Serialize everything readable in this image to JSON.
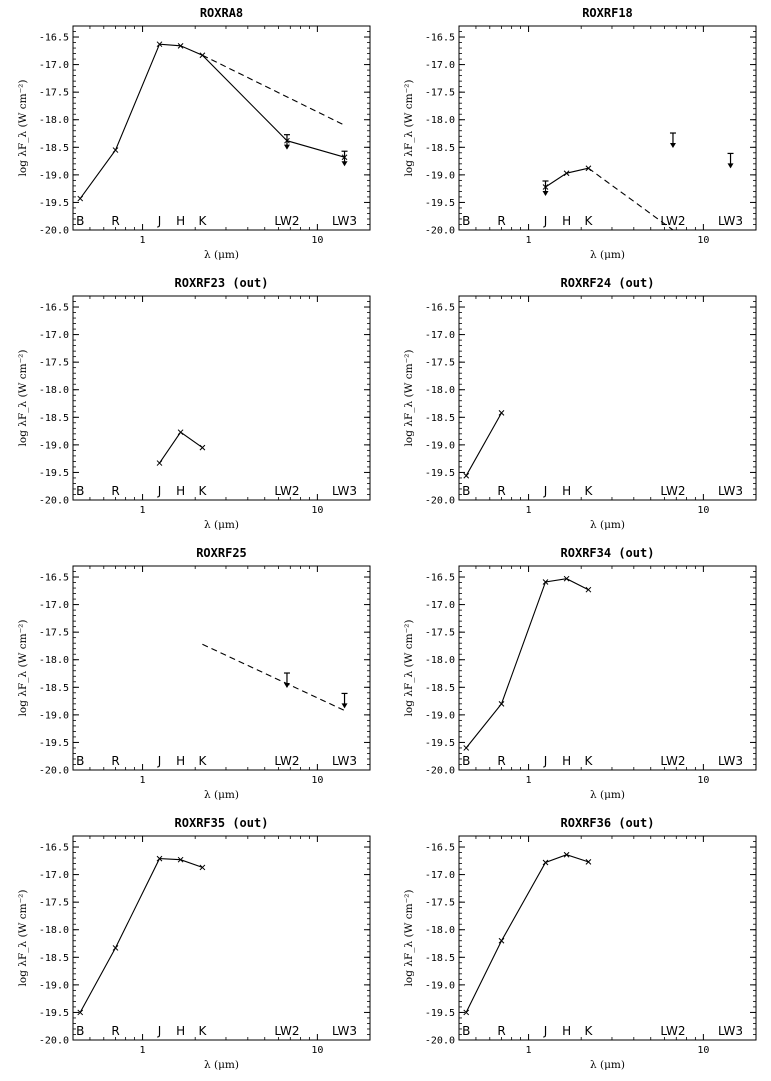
{
  "figure": {
    "background": "#ffffff",
    "ink": "#000000"
  },
  "chart_data": [
    {
      "type": "line",
      "title": "ROXRA8",
      "xlabel": "λ (μm)",
      "ylabel": "log λF_λ (W cm⁻²)",
      "x_scale": "log",
      "xlim": [
        0.4,
        20
      ],
      "ylim": [
        -20.0,
        -16.3
      ],
      "x_tick_labels": [
        "1",
        "10"
      ],
      "y_tick_labels": [
        "-16.5",
        "-17.0",
        "-17.5",
        "-18.0",
        "-18.5",
        "-19.0",
        "-19.5",
        "-20.0"
      ],
      "band_labels": [
        "B",
        "R",
        "J",
        "H",
        "K",
        "LW2",
        "LW3"
      ],
      "series": [
        {
          "style": "solid",
          "x": [
            0.44,
            0.7,
            1.25,
            1.65,
            2.2,
            6.7,
            14.3
          ],
          "y": [
            -19.43,
            -18.55,
            -16.63,
            -16.66,
            -16.83,
            -18.38,
            -18.68
          ]
        },
        {
          "style": "dashed",
          "x": [
            2.2,
            14.3
          ],
          "y": [
            -16.83,
            -18.1
          ]
        }
      ],
      "upper_limits": [
        {
          "x": 6.7,
          "y": -18.38
        },
        {
          "x": 14.3,
          "y": -18.68
        }
      ]
    },
    {
      "type": "line",
      "title": "ROXRF18",
      "xlabel": "λ (μm)",
      "ylabel": "log λF_λ (W cm⁻²)",
      "x_scale": "log",
      "xlim": [
        0.4,
        20
      ],
      "ylim": [
        -20.0,
        -16.3
      ],
      "x_tick_labels": [
        "1",
        "10"
      ],
      "y_tick_labels": [
        "-16.5",
        "-17.0",
        "-17.5",
        "-18.0",
        "-18.5",
        "-19.0",
        "-19.5",
        "-20.0"
      ],
      "band_labels": [
        "B",
        "R",
        "J",
        "H",
        "K",
        "LW2",
        "LW3"
      ],
      "series": [
        {
          "style": "solid",
          "x": [
            1.25,
            1.65,
            2.2
          ],
          "y": [
            -19.22,
            -18.97,
            -18.88
          ]
        },
        {
          "style": "dashed",
          "x": [
            2.2,
            6.7
          ],
          "y": [
            -18.88,
            -20.0
          ]
        }
      ],
      "upper_limits": [
        {
          "x": 1.25,
          "y": -19.22
        },
        {
          "x": 6.7,
          "y": -18.35
        },
        {
          "x": 14.3,
          "y": -18.72
        }
      ]
    },
    {
      "type": "line",
      "title": "ROXRF23 (out)",
      "xlabel": "λ (μm)",
      "ylabel": "log λF_λ (W cm⁻²)",
      "x_scale": "log",
      "xlim": [
        0.4,
        20
      ],
      "ylim": [
        -20.0,
        -16.3
      ],
      "x_tick_labels": [
        "1",
        "10"
      ],
      "y_tick_labels": [
        "-16.5",
        "-17.0",
        "-17.5",
        "-18.0",
        "-18.5",
        "-19.0",
        "-19.5",
        "-20.0"
      ],
      "band_labels": [
        "B",
        "R",
        "J",
        "H",
        "K",
        "LW2",
        "LW3"
      ],
      "series": [
        {
          "style": "solid",
          "x": [
            1.25,
            1.65,
            2.2
          ],
          "y": [
            -19.33,
            -18.77,
            -19.05
          ]
        }
      ],
      "upper_limits": []
    },
    {
      "type": "line",
      "title": "ROXRF24 (out)",
      "xlabel": "λ (μm)",
      "ylabel": "log λF_λ (W cm⁻²)",
      "x_scale": "log",
      "xlim": [
        0.4,
        20
      ],
      "ylim": [
        -20.0,
        -16.3
      ],
      "x_tick_labels": [
        "1",
        "10"
      ],
      "y_tick_labels": [
        "-16.5",
        "-17.0",
        "-17.5",
        "-18.0",
        "-18.5",
        "-19.0",
        "-19.5",
        "-20.0"
      ],
      "band_labels": [
        "B",
        "R",
        "J",
        "H",
        "K",
        "LW2",
        "LW3"
      ],
      "series": [
        {
          "style": "solid",
          "x": [
            0.44,
            0.7
          ],
          "y": [
            -19.56,
            -18.42
          ]
        }
      ],
      "upper_limits": []
    },
    {
      "type": "line",
      "title": "ROXRF25",
      "xlabel": "λ (μm)",
      "ylabel": "log λF_λ (W cm⁻²)",
      "x_scale": "log",
      "xlim": [
        0.4,
        20
      ],
      "ylim": [
        -20.0,
        -16.3
      ],
      "x_tick_labels": [
        "1",
        "10"
      ],
      "y_tick_labels": [
        "-16.5",
        "-17.0",
        "-17.5",
        "-18.0",
        "-18.5",
        "-19.0",
        "-19.5",
        "-20.0"
      ],
      "band_labels": [
        "B",
        "R",
        "J",
        "H",
        "K",
        "LW2",
        "LW3"
      ],
      "series": [
        {
          "style": "dashed",
          "x": [
            2.2,
            14.3
          ],
          "y": [
            -17.72,
            -18.92
          ]
        }
      ],
      "upper_limits": [
        {
          "x": 6.7,
          "y": -18.35
        },
        {
          "x": 14.3,
          "y": -18.72
        }
      ]
    },
    {
      "type": "line",
      "title": "ROXRF34 (out)",
      "xlabel": "λ (μm)",
      "ylabel": "log λF_λ (W cm⁻²)",
      "x_scale": "log",
      "xlim": [
        0.4,
        20
      ],
      "ylim": [
        -20.0,
        -16.3
      ],
      "x_tick_labels": [
        "1",
        "10"
      ],
      "y_tick_labels": [
        "-16.5",
        "-17.0",
        "-17.5",
        "-18.0",
        "-18.5",
        "-19.0",
        "-19.5",
        "-20.0"
      ],
      "band_labels": [
        "B",
        "R",
        "J",
        "H",
        "K",
        "LW2",
        "LW3"
      ],
      "series": [
        {
          "style": "solid",
          "x": [
            0.44,
            0.7,
            1.25,
            1.65,
            2.2
          ],
          "y": [
            -19.6,
            -18.8,
            -16.59,
            -16.53,
            -16.73
          ]
        }
      ],
      "upper_limits": []
    },
    {
      "type": "line",
      "title": "ROXRF35 (out)",
      "xlabel": "λ (μm)",
      "ylabel": "log λF_λ (W cm⁻²)",
      "x_scale": "log",
      "xlim": [
        0.4,
        20
      ],
      "ylim": [
        -20.0,
        -16.3
      ],
      "x_tick_labels": [
        "1",
        "10"
      ],
      "y_tick_labels": [
        "-16.5",
        "-17.0",
        "-17.5",
        "-18.0",
        "-18.5",
        "-19.0",
        "-19.5",
        "-20.0"
      ],
      "band_labels": [
        "B",
        "R",
        "J",
        "H",
        "K",
        "LW2",
        "LW3"
      ],
      "series": [
        {
          "style": "solid",
          "x": [
            0.44,
            0.7,
            1.25,
            1.65,
            2.2
          ],
          "y": [
            -19.5,
            -18.33,
            -16.71,
            -16.73,
            -16.87
          ]
        }
      ],
      "upper_limits": []
    },
    {
      "type": "line",
      "title": "ROXRF36 (out)",
      "xlabel": "λ (μm)",
      "ylabel": "log λF_λ (W cm⁻²)",
      "x_scale": "log",
      "xlim": [
        0.4,
        20
      ],
      "ylim": [
        -20.0,
        -16.3
      ],
      "x_tick_labels": [
        "1",
        "10"
      ],
      "y_tick_labels": [
        "-16.5",
        "-17.0",
        "-17.5",
        "-18.0",
        "-18.5",
        "-19.0",
        "-19.5",
        "-20.0"
      ],
      "band_labels": [
        "B",
        "R",
        "J",
        "H",
        "K",
        "LW2",
        "LW3"
      ],
      "series": [
        {
          "style": "solid",
          "x": [
            0.44,
            0.7,
            1.25,
            1.65,
            2.2
          ],
          "y": [
            -19.5,
            -18.2,
            -16.78,
            -16.64,
            -16.77
          ]
        }
      ],
      "upper_limits": []
    }
  ]
}
